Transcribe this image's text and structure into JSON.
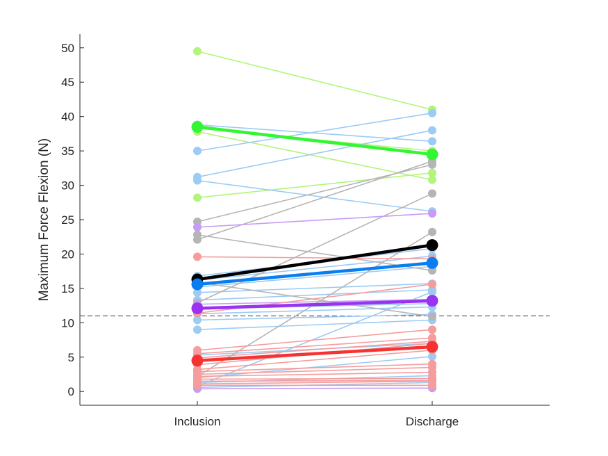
{
  "chart_data": {
    "type": "line",
    "title": "",
    "xlabel": "",
    "ylabel": "Maximum Force Flexion (N)",
    "categories": [
      "Inclusion",
      "Discharge"
    ],
    "ylim": [
      -2,
      52
    ],
    "yticks": [
      0,
      5,
      10,
      15,
      20,
      25,
      30,
      35,
      40,
      45,
      50
    ],
    "grid": false,
    "legend": "none",
    "reference_line": {
      "y": 11,
      "style": "dashed",
      "color": "#333333"
    },
    "group_colors": {
      "green": "#b2f57a",
      "blue": "#9ccbf4",
      "gray": "#b5b5b5",
      "purple": "#c79cf4",
      "red": "#f59c9c"
    },
    "series": [
      {
        "group": "green",
        "values": [
          49.5,
          41.0
        ]
      },
      {
        "group": "green",
        "values": [
          37.8,
          30.8
        ]
      },
      {
        "group": "green",
        "values": [
          28.2,
          31.8
        ]
      },
      {
        "group": "green",
        "values": [
          38.3,
          35.0
        ]
      },
      {
        "group": "blue",
        "values": [
          35.0,
          40.5
        ]
      },
      {
        "group": "blue",
        "values": [
          31.2,
          38.0
        ]
      },
      {
        "group": "blue",
        "values": [
          38.8,
          36.4
        ]
      },
      {
        "group": "blue",
        "values": [
          30.7,
          26.2
        ]
      },
      {
        "group": "blue",
        "values": [
          16.8,
          20.8
        ]
      },
      {
        "group": "blue",
        "values": [
          16.2,
          19.7
        ]
      },
      {
        "group": "blue",
        "values": [
          15.2,
          18.2
        ]
      },
      {
        "group": "blue",
        "values": [
          14.4,
          15.7
        ]
      },
      {
        "group": "blue",
        "values": [
          13.3,
          14.8
        ]
      },
      {
        "group": "blue",
        "values": [
          12.0,
          12.8
        ]
      },
      {
        "group": "blue",
        "values": [
          11.3,
          12.3
        ]
      },
      {
        "group": "blue",
        "values": [
          10.4,
          11.2
        ]
      },
      {
        "group": "blue",
        "values": [
          9.0,
          10.4
        ]
      },
      {
        "group": "blue",
        "values": [
          5.3,
          7.0
        ]
      },
      {
        "group": "blue",
        "values": [
          2.0,
          5.1
        ]
      },
      {
        "group": "blue",
        "values": [
          1.3,
          2.3
        ]
      },
      {
        "group": "blue",
        "values": [
          0.8,
          14.5
        ]
      },
      {
        "group": "blue",
        "values": [
          0.6,
          1.3
        ]
      },
      {
        "group": "gray",
        "values": [
          24.7,
          33.0
        ]
      },
      {
        "group": "gray",
        "values": [
          22.8,
          17.6
        ]
      },
      {
        "group": "gray",
        "values": [
          22.1,
          33.5
        ]
      },
      {
        "group": "gray",
        "values": [
          15.9,
          10.9
        ]
      },
      {
        "group": "gray",
        "values": [
          12.9,
          28.8
        ]
      },
      {
        "group": "gray",
        "values": [
          2.2,
          23.2
        ]
      },
      {
        "group": "purple",
        "values": [
          23.9,
          25.9
        ]
      },
      {
        "group": "purple",
        "values": [
          12.7,
          13.4
        ]
      },
      {
        "group": "purple",
        "values": [
          0.4,
          0.5
        ]
      },
      {
        "group": "red",
        "values": [
          19.6,
          19.3
        ]
      },
      {
        "group": "red",
        "values": [
          11.4,
          15.6
        ]
      },
      {
        "group": "red",
        "values": [
          6.0,
          9.0
        ]
      },
      {
        "group": "red",
        "values": [
          5.5,
          7.8
        ]
      },
      {
        "group": "red",
        "values": [
          4.9,
          7.3
        ]
      },
      {
        "group": "red",
        "values": [
          3.9,
          7.0
        ]
      },
      {
        "group": "red",
        "values": [
          3.2,
          6.0
        ]
      },
      {
        "group": "red",
        "values": [
          2.9,
          4.0
        ]
      },
      {
        "group": "red",
        "values": [
          2.5,
          3.5
        ]
      },
      {
        "group": "red",
        "values": [
          2.2,
          2.8
        ]
      },
      {
        "group": "red",
        "values": [
          1.8,
          1.9
        ]
      },
      {
        "group": "red",
        "values": [
          1.5,
          1.6
        ]
      },
      {
        "group": "red",
        "values": [
          1.1,
          1.5
        ]
      },
      {
        "group": "red",
        "values": [
          0.9,
          0.9
        ]
      }
    ],
    "mean_series": [
      {
        "group": "green",
        "color": "#33f533",
        "values": [
          38.5,
          34.5
        ]
      },
      {
        "group": "gray",
        "color": "#000000",
        "values": [
          16.3,
          21.3
        ]
      },
      {
        "group": "blue",
        "color": "#0a7ef0",
        "values": [
          15.6,
          18.7
        ]
      },
      {
        "group": "purple",
        "color": "#9933f0",
        "values": [
          12.1,
          13.2
        ]
      },
      {
        "group": "red",
        "color": "#f53333",
        "values": [
          4.5,
          6.5
        ]
      }
    ]
  }
}
